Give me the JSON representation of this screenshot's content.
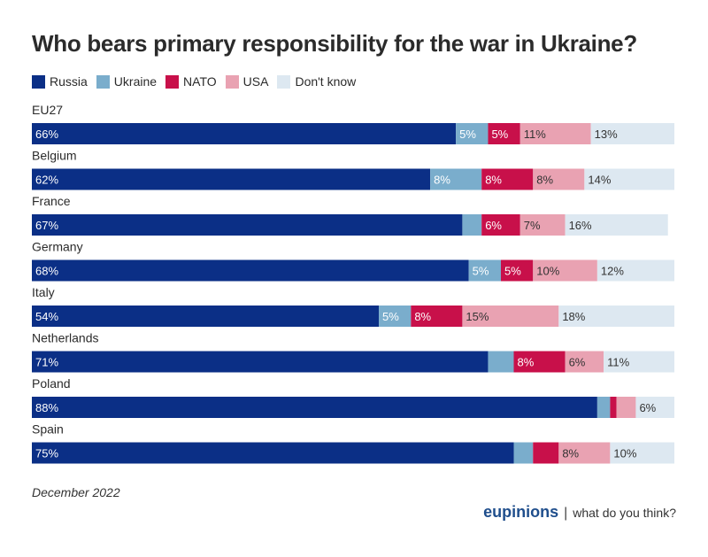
{
  "header": {
    "title": "Who bears primary responsibility for the war in Ukraine?"
  },
  "chart_data": {
    "type": "bar",
    "orientation": "horizontal",
    "stacked": true,
    "title": "Who bears primary responsibility for the war in Ukraine?",
    "xlabel": "",
    "ylabel": "",
    "xlim": [
      0,
      100
    ],
    "grid": false,
    "legend": "top-left",
    "categories": [
      "EU27",
      "Belgium",
      "France",
      "Germany",
      "Italy",
      "Netherlands",
      "Poland",
      "Spain"
    ],
    "series": [
      {
        "name": "Russia",
        "color": "#0b2f86",
        "label_color": "#ffffff",
        "values": [
          66,
          62,
          67,
          68,
          54,
          71,
          88,
          75
        ],
        "labels": [
          "66%",
          "62%",
          "67%",
          "68%",
          "54%",
          "71%",
          "88%",
          "75%"
        ]
      },
      {
        "name": "Ukraine",
        "color": "#7aadcc",
        "label_color": "#ffffff",
        "values": [
          5,
          8,
          3,
          5,
          5,
          4,
          2,
          3
        ],
        "labels": [
          "5%",
          "8%",
          "",
          "5%",
          "5%",
          "",
          "",
          ""
        ]
      },
      {
        "name": "NATO",
        "color": "#c8104a",
        "label_color": "#ffffff",
        "values": [
          5,
          8,
          6,
          5,
          8,
          8,
          1,
          4
        ],
        "labels": [
          "5%",
          "8%",
          "6%",
          "5%",
          "8%",
          "8%",
          "",
          ""
        ]
      },
      {
        "name": "USA",
        "color": "#e9a2b2",
        "label_color": "#333333",
        "values": [
          11,
          8,
          7,
          10,
          15,
          6,
          3,
          8
        ],
        "labels": [
          "11%",
          "8%",
          "7%",
          "10%",
          "15%",
          "6%",
          "",
          "8%"
        ]
      },
      {
        "name": "Don't know",
        "color": "#dde8f1",
        "label_color": "#333333",
        "values": [
          13,
          14,
          16,
          12,
          18,
          11,
          6,
          10
        ],
        "labels": [
          "13%",
          "14%",
          "16%",
          "12%",
          "18%",
          "11%",
          "6%",
          "10%"
        ]
      }
    ]
  },
  "footer": {
    "date": "December 2022",
    "brand_name": "eupinions",
    "brand_separator": "|",
    "brand_tagline": "what do you think?"
  }
}
